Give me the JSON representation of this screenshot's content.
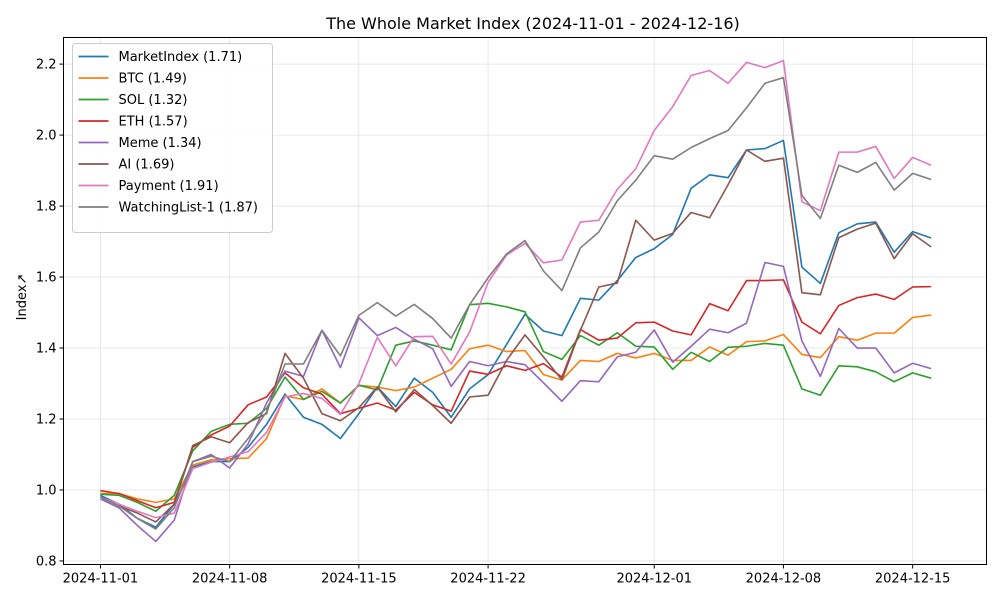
{
  "chart_data": {
    "type": "line",
    "title": "The Whole Market Index (2024-11-01 - 2024-12-16)",
    "xlabel": "",
    "ylabel": "Index↗",
    "grid": true,
    "legend_placement": "top-left",
    "xlim": [
      "2024-10-30",
      "2024-12-19"
    ],
    "ylim": [
      0.79,
      2.275
    ],
    "x_ticks": [
      "2024-11-01",
      "2024-11-08",
      "2024-11-15",
      "2024-11-22",
      "2024-12-01",
      "2024-12-08",
      "2024-12-15"
    ],
    "y_ticks": [
      "0.8",
      "1.0",
      "1.2",
      "1.4",
      "1.6",
      "1.8",
      "2.0",
      "2.2"
    ],
    "x": [
      "2024-11-01",
      "2024-11-02",
      "2024-11-03",
      "2024-11-04",
      "2024-11-05",
      "2024-11-06",
      "2024-11-07",
      "2024-11-08",
      "2024-11-09",
      "2024-11-10",
      "2024-11-11",
      "2024-11-12",
      "2024-11-13",
      "2024-11-14",
      "2024-11-15",
      "2024-11-16",
      "2024-11-17",
      "2024-11-18",
      "2024-11-19",
      "2024-11-20",
      "2024-11-21",
      "2024-11-22",
      "2024-11-23",
      "2024-11-24",
      "2024-11-25",
      "2024-11-26",
      "2024-11-27",
      "2024-11-28",
      "2024-11-29",
      "2024-11-30",
      "2024-12-01",
      "2024-12-02",
      "2024-12-03",
      "2024-12-04",
      "2024-12-05",
      "2024-12-06",
      "2024-12-07",
      "2024-12-08",
      "2024-12-09",
      "2024-12-10",
      "2024-12-11",
      "2024-12-12",
      "2024-12-13",
      "2024-12-14",
      "2024-12-15",
      "2024-12-16"
    ],
    "series": [
      {
        "name": "MarketIndex (1.71)",
        "color": "#1f77b4",
        "values": [
          0.985,
          0.96,
          0.92,
          0.895,
          0.96,
          1.065,
          1.08,
          1.08,
          1.12,
          1.185,
          1.27,
          1.205,
          1.185,
          1.145,
          1.215,
          1.29,
          1.235,
          1.315,
          1.275,
          1.205,
          1.285,
          1.325,
          1.41,
          1.495,
          1.448,
          1.435,
          1.54,
          1.535,
          1.59,
          1.655,
          1.68,
          1.72,
          1.85,
          1.888,
          1.88,
          1.958,
          1.962,
          1.985,
          1.628,
          1.582,
          1.725,
          1.75,
          1.755,
          1.67,
          1.728,
          1.71
        ]
      },
      {
        "name": "BTC (1.49)",
        "color": "#ff7f0e",
        "values": [
          0.99,
          0.99,
          0.975,
          0.965,
          0.975,
          1.07,
          1.085,
          1.088,
          1.09,
          1.145,
          1.265,
          1.255,
          1.285,
          1.245,
          1.295,
          1.29,
          1.28,
          1.29,
          1.315,
          1.34,
          1.398,
          1.408,
          1.39,
          1.393,
          1.325,
          1.31,
          1.365,
          1.362,
          1.385,
          1.372,
          1.385,
          1.365,
          1.365,
          1.403,
          1.38,
          1.418,
          1.42,
          1.438,
          1.382,
          1.373,
          1.432,
          1.422,
          1.442,
          1.442,
          1.486,
          1.493
        ]
      },
      {
        "name": "SOL (1.32)",
        "color": "#2ca02c",
        "values": [
          0.988,
          0.985,
          0.965,
          0.94,
          0.985,
          1.11,
          1.165,
          1.185,
          1.188,
          1.23,
          1.318,
          1.255,
          1.278,
          1.245,
          1.295,
          1.282,
          1.408,
          1.42,
          1.408,
          1.395,
          1.522,
          1.526,
          1.516,
          1.502,
          1.39,
          1.368,
          1.435,
          1.408,
          1.443,
          1.405,
          1.403,
          1.34,
          1.388,
          1.362,
          1.402,
          1.405,
          1.413,
          1.408,
          1.285,
          1.267,
          1.35,
          1.347,
          1.333,
          1.305,
          1.33,
          1.315
        ]
      },
      {
        "name": "ETH (1.57)",
        "color": "#d62728",
        "values": [
          0.998,
          0.99,
          0.97,
          0.95,
          0.965,
          1.12,
          1.155,
          1.18,
          1.24,
          1.262,
          1.33,
          1.288,
          1.27,
          1.215,
          1.23,
          1.245,
          1.225,
          1.275,
          1.24,
          1.222,
          1.335,
          1.326,
          1.35,
          1.337,
          1.356,
          1.318,
          1.452,
          1.422,
          1.428,
          1.471,
          1.473,
          1.448,
          1.437,
          1.525,
          1.505,
          1.59,
          1.59,
          1.592,
          1.473,
          1.44,
          1.52,
          1.542,
          1.552,
          1.537,
          1.572,
          1.573
        ]
      },
      {
        "name": "Meme (1.34)",
        "color": "#9467bd",
        "values": [
          0.975,
          0.95,
          0.9,
          0.855,
          0.915,
          1.08,
          1.1,
          1.062,
          1.13,
          1.245,
          1.335,
          1.32,
          1.45,
          1.345,
          1.485,
          1.435,
          1.458,
          1.425,
          1.398,
          1.292,
          1.362,
          1.35,
          1.362,
          1.353,
          1.302,
          1.25,
          1.308,
          1.305,
          1.375,
          1.388,
          1.451,
          1.36,
          1.405,
          1.453,
          1.443,
          1.47,
          1.641,
          1.63,
          1.42,
          1.32,
          1.455,
          1.4,
          1.4,
          1.33,
          1.357,
          1.342
        ]
      },
      {
        "name": "AI (1.69)",
        "color": "#8c564b",
        "values": [
          0.98,
          0.955,
          0.935,
          0.91,
          0.96,
          1.125,
          1.15,
          1.133,
          1.19,
          1.215,
          1.385,
          1.315,
          1.215,
          1.195,
          1.232,
          1.29,
          1.22,
          1.283,
          1.238,
          1.188,
          1.262,
          1.267,
          1.365,
          1.437,
          1.375,
          1.31,
          1.45,
          1.572,
          1.583,
          1.76,
          1.704,
          1.723,
          1.782,
          1.767,
          1.86,
          1.958,
          1.926,
          1.935,
          1.556,
          1.55,
          1.711,
          1.735,
          1.752,
          1.652,
          1.722,
          1.685
        ]
      },
      {
        "name": "Payment (1.91)",
        "color": "#e377c2",
        "values": [
          0.98,
          0.96,
          0.94,
          0.922,
          0.935,
          1.06,
          1.078,
          1.093,
          1.108,
          1.162,
          1.262,
          1.272,
          1.258,
          1.213,
          1.3,
          1.43,
          1.35,
          1.432,
          1.433,
          1.355,
          1.445,
          1.585,
          1.662,
          1.695,
          1.64,
          1.648,
          1.755,
          1.76,
          1.847,
          1.905,
          2.013,
          2.08,
          2.168,
          2.182,
          2.146,
          2.205,
          2.19,
          2.21,
          1.812,
          1.787,
          1.952,
          1.952,
          1.968,
          1.878,
          1.937,
          1.915
        ]
      },
      {
        "name": "WatchingList-1 (1.87)",
        "color": "#7f7f7f",
        "values": [
          0.98,
          0.955,
          0.92,
          0.89,
          0.95,
          1.08,
          1.095,
          1.08,
          1.145,
          1.22,
          1.355,
          1.355,
          1.45,
          1.378,
          1.492,
          1.528,
          1.49,
          1.523,
          1.483,
          1.428,
          1.522,
          1.598,
          1.665,
          1.703,
          1.617,
          1.562,
          1.682,
          1.727,
          1.815,
          1.873,
          1.942,
          1.932,
          1.965,
          1.99,
          2.013,
          2.077,
          2.146,
          2.162,
          1.83,
          1.765,
          1.915,
          1.895,
          1.923,
          1.845,
          1.892,
          1.875
        ]
      }
    ]
  }
}
